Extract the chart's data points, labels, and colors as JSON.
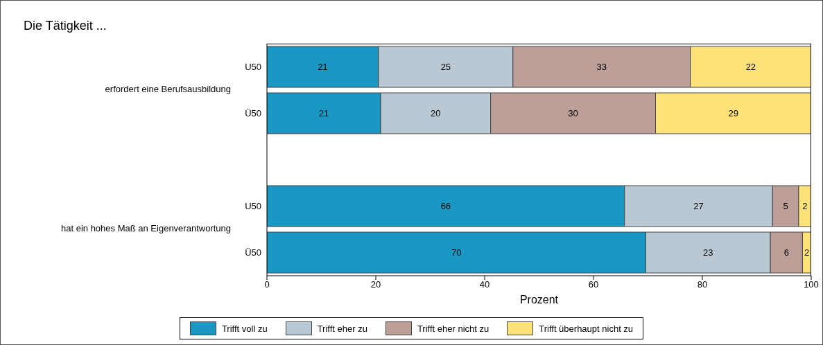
{
  "chart_data": {
    "type": "bar",
    "orientation": "horizontal",
    "stacked": true,
    "title": "Die Tätigkeit ...",
    "xlabel": "Prozent",
    "categories": [
      "U50",
      "Ü50",
      null,
      "U50",
      "Ü50"
    ],
    "annotations": [
      "erfordert eine Berufsausbildung",
      "hat ein hohes Maß an Eigenverantwortung"
    ],
    "series": [
      {
        "name": "Trifft voll zu",
        "color": "#1a98c4",
        "values": [
          20.5,
          20.9,
          null,
          65.7,
          69.6
        ],
        "value_labels": [
          "21",
          "21",
          null,
          "66",
          "70"
        ]
      },
      {
        "name": "Trifft eher zu",
        "color": "#b9c8d3",
        "values": [
          24.7,
          20.2,
          null,
          27.2,
          22.9
        ],
        "value_labels": [
          "25",
          "20",
          null,
          "27",
          "23"
        ]
      },
      {
        "name": "Trifft eher nicht zu",
        "color": "#bd9f99",
        "values": [
          32.6,
          30.3,
          null,
          4.8,
          5.9
        ],
        "value_labels": [
          "33",
          "30",
          null,
          "5",
          "6"
        ]
      },
      {
        "name": "Trifft überhaupt nicht zu",
        "color": "#fde27a",
        "values": [
          22.2,
          28.6,
          null,
          2.3,
          1.6
        ],
        "value_labels": [
          "22",
          "29",
          null,
          "2",
          "2"
        ]
      }
    ],
    "xlim": [
      0,
      100
    ],
    "xticks": [
      0,
      20,
      40,
      60,
      80,
      100
    ],
    "legend": "bottom"
  }
}
